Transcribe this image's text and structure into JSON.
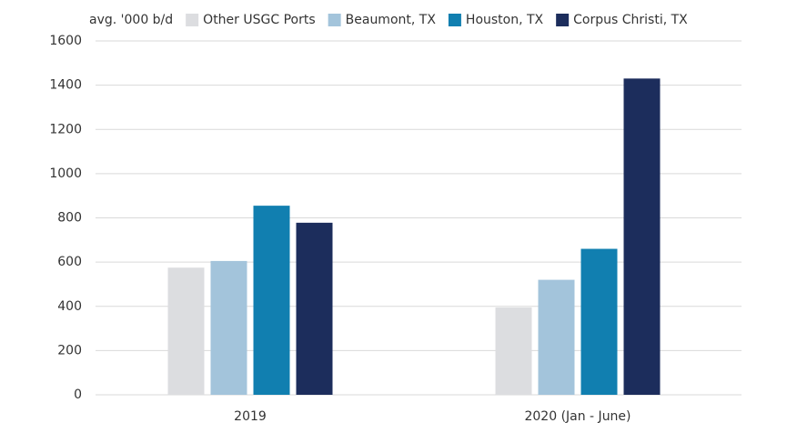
{
  "chart_data": {
    "type": "bar",
    "y_unit_label": "avg. '000 b/d",
    "categories": [
      "2019",
      "2020 (Jan - June)"
    ],
    "series": [
      {
        "name": "Other USGC Ports",
        "color": "#dcdde0",
        "values": [
          575,
          395
        ]
      },
      {
        "name": "Beaumont, TX",
        "color": "#a3c4db",
        "values": [
          605,
          520
        ]
      },
      {
        "name": "Houston, TX",
        "color": "#117fb0",
        "values": [
          855,
          660
        ]
      },
      {
        "name": "Corpus Christi, TX",
        "color": "#1c2d5c",
        "values": [
          778,
          1430
        ]
      }
    ],
    "ylim": [
      0,
      1600
    ],
    "yticks": [
      0,
      200,
      400,
      600,
      800,
      1000,
      1200,
      1400,
      1600
    ],
    "grid": true,
    "legend": "top"
  }
}
